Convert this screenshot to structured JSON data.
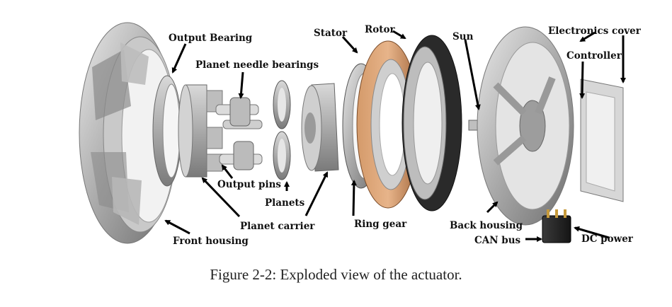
{
  "labels": {
    "output_bearing": "Output Bearing",
    "planet_needle_bearings": "Planet needle bearings",
    "stator": "Stator",
    "rotor": "Rotor",
    "sun": "Sun",
    "electronics_cover": "Electronics cover",
    "controller": "Controller",
    "output_pins": "Output pins",
    "planets": "Planets",
    "planet_carrier": "Planet carrier",
    "ring_gear": "Ring gear",
    "back_housing": "Back housing",
    "dc_power": "DC power",
    "can_bus": "CAN bus",
    "front_housing": "Front housing"
  },
  "caption": "Figure 2-2: Exploded view of the actuator."
}
